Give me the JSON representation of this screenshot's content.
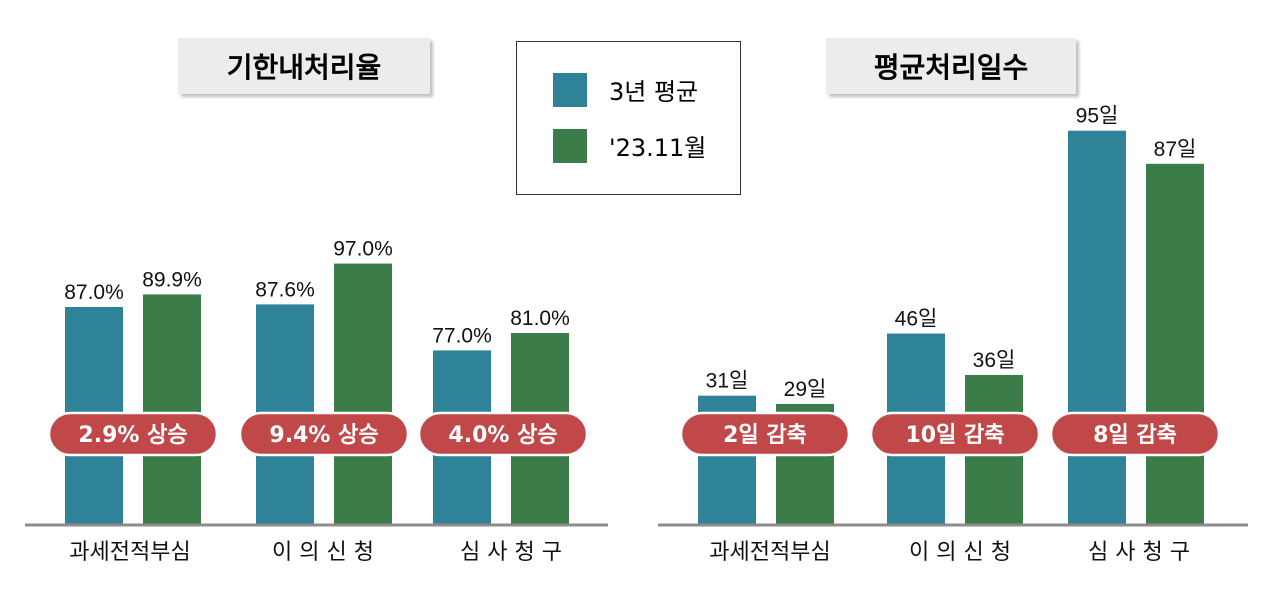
{
  "legend": {
    "items": [
      {
        "label": "3년 평균",
        "color": "#2e8399"
      },
      {
        "label": "'23.11월",
        "color": "#3b7c49"
      }
    ]
  },
  "colors": {
    "series1": "#2e8399",
    "series2": "#3b7c49",
    "badge": "#c04848",
    "axis": "#8c8c8c"
  },
  "chart_data": [
    {
      "type": "bar",
      "title": "기한내처리율",
      "categories": [
        "과세전적부심",
        "이 의 신 청",
        "심 사 청 구"
      ],
      "series": [
        {
          "name": "3년 평균",
          "values": [
            87.0,
            87.6,
            77.0
          ],
          "labels": [
            "87.0%",
            "87.6%",
            "77.0%"
          ]
        },
        {
          "name": "'23.11월",
          "values": [
            89.9,
            97.0,
            81.0
          ],
          "labels": [
            "89.9%",
            "97.0%",
            "81.0%"
          ]
        }
      ],
      "annotations": [
        "2.9% 상승",
        "9.4% 상승",
        "4.0% 상승"
      ]
    },
    {
      "type": "bar",
      "title": "평균처리일수",
      "categories": [
        "과세전적부심",
        "이 의 신 청",
        "심 사 청 구"
      ],
      "series": [
        {
          "name": "3년 평균",
          "values": [
            31,
            46,
            95
          ],
          "labels": [
            "31일",
            "46일",
            "95일"
          ]
        },
        {
          "name": "'23.11월",
          "values": [
            29,
            36,
            87
          ],
          "labels": [
            "29일",
            "36일",
            "87일"
          ]
        }
      ],
      "annotations": [
        "2일 감축",
        "10일 감축",
        "8일 감축"
      ]
    }
  ]
}
